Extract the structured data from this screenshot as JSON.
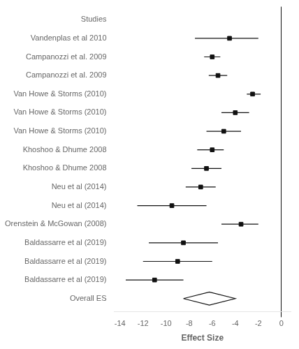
{
  "chart_data": {
    "type": "forest",
    "categories": [
      "Studies",
      "Vandenplas et al 2010",
      "Campanozzi et al. 2009",
      "Campanozzi et al. 2009",
      "Van Howe & Storms (2010)",
      "Van Howe & Storms (2010)",
      "Van Howe & Storms (2010)",
      "Khoshoo & Dhume 2008",
      "Khoshoo & Dhume 2008",
      "Neu et al (2014)",
      "Neu et al (2014)",
      "Orenstein & McGowan (2008)",
      "Baldassarre et al (2019)",
      "Baldassarre et al (2019)",
      "Baldassarre et al (2019)",
      "Overall ES"
    ],
    "values": [
      null,
      -4.5,
      -6.0,
      -5.5,
      -2.5,
      -4.0,
      -5.0,
      -6.0,
      -6.5,
      -7.0,
      -9.5,
      -3.5,
      -8.5,
      -9.0,
      -11.0,
      null
    ],
    "ci_lower": [
      null,
      -7.5,
      -6.7,
      -6.3,
      -3.0,
      -5.2,
      -6.5,
      -7.3,
      -7.8,
      -8.3,
      -12.5,
      -5.2,
      -11.5,
      -12.0,
      -13.5,
      null
    ],
    "ci_upper": [
      null,
      -2.0,
      -5.3,
      -4.7,
      -1.8,
      -2.8,
      -3.5,
      -5.0,
      -5.2,
      -5.7,
      -6.5,
      -2.0,
      -5.5,
      -6.0,
      -8.5,
      null
    ],
    "overall": {
      "category": "Overall ES",
      "value": -6.25,
      "lower": -8.5,
      "upper": -4.0
    },
    "color": "#111111",
    "xlabel": "Effect Size",
    "xlim": [
      -14.5,
      0.8
    ],
    "xticks": [
      -14,
      -12,
      -10,
      -8,
      -6,
      -4,
      -2,
      0
    ],
    "reference_line": 0,
    "grid": false
  }
}
